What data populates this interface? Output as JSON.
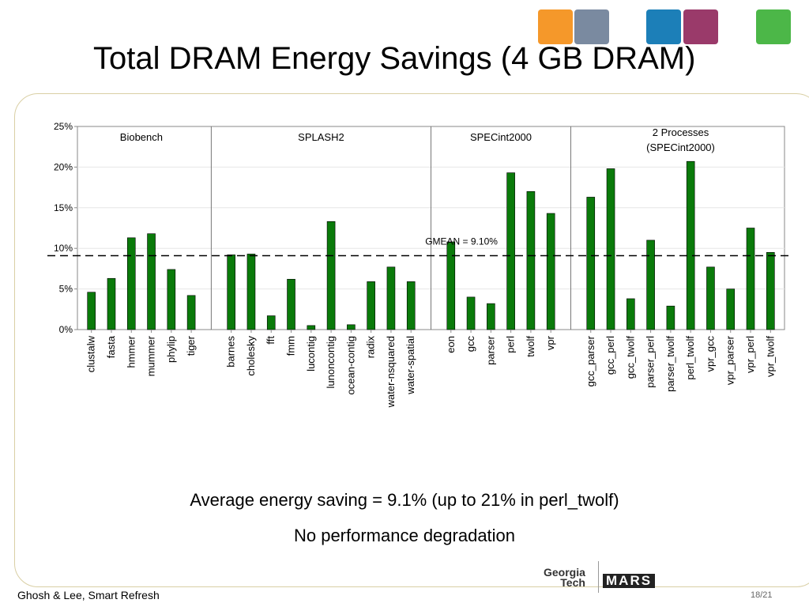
{
  "slide": {
    "title": "Total DRAM Energy Savings (4 GB DRAM)",
    "bullets": [
      "Average energy saving = 9.1% (up to 21% in perl_twolf)",
      "No performance degradation"
    ],
    "footer_left": "Ghosh & Lee, Smart Refresh",
    "page_number": "18/21",
    "logo_text_1": "Georgia",
    "logo_text_2": "Tech",
    "logo_text_3": "MARS",
    "logo_colors": [
      "#f5982a",
      "#7a8aa0",
      "#1c7fb8",
      "#9a3a6a",
      "#4cb748"
    ]
  },
  "chart_data": {
    "type": "bar",
    "ylim": [
      0,
      25
    ],
    "yticks": [
      "0%",
      "5%",
      "10%",
      "15%",
      "20%",
      "25%"
    ],
    "bar_color": "#0a7a0a",
    "gmean_value": 9.1,
    "gmean_label": "GMEAN = 9.10%",
    "groups": [
      {
        "name": "Biobench",
        "categories": [
          "clustalw",
          "fasta",
          "hmmer",
          "mummer",
          "phylip",
          "tiger"
        ],
        "values": [
          4.6,
          6.3,
          11.3,
          11.8,
          7.4,
          4.2
        ]
      },
      {
        "name": "SPLASH2",
        "categories": [
          "barnes",
          "cholesky",
          "fft",
          "fmm",
          "lucontig",
          "lunoncontig",
          "ocean-contig",
          "radix",
          "water-nsquared",
          "water-spatial"
        ],
        "values": [
          9.2,
          9.3,
          1.7,
          6.2,
          0.5,
          13.3,
          0.6,
          5.9,
          7.7,
          5.9
        ]
      },
      {
        "name": "SPECint2000",
        "categories": [
          "eon",
          "gcc",
          "parser",
          "perl",
          "twolf",
          "vpr"
        ],
        "values": [
          10.8,
          4.0,
          3.2,
          19.3,
          17.0,
          14.3
        ]
      },
      {
        "name": "2 Processes\n(SPECint2000)",
        "categories": [
          "gcc_parser",
          "gcc_perl",
          "gcc_twolf",
          "parser_perl",
          "parser_twolf",
          "perl_twolf",
          "vpr_gcc",
          "vpr_parser",
          "vpr_perl",
          "vpr_twolf"
        ],
        "values": [
          16.3,
          19.8,
          3.8,
          11.0,
          2.9,
          20.7,
          7.7,
          5.0,
          12.5,
          9.5
        ]
      }
    ]
  }
}
